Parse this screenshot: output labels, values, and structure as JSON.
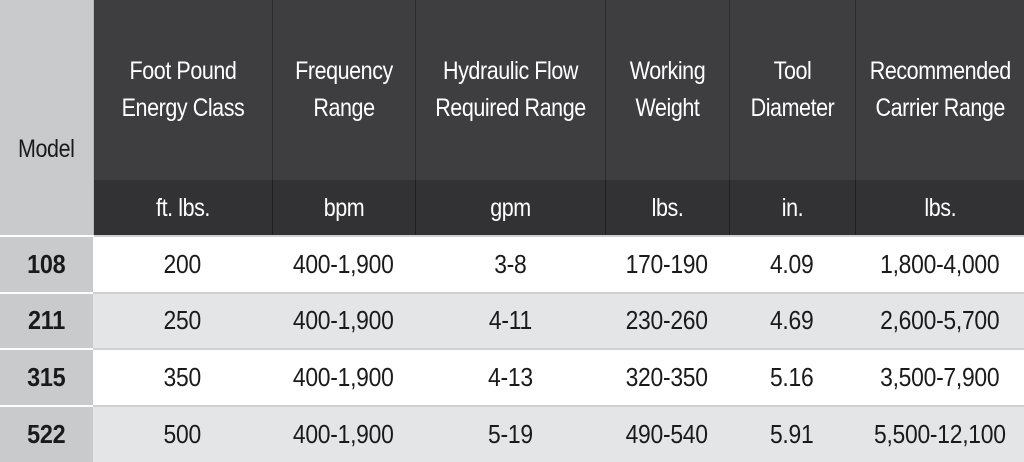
{
  "columns": [
    {
      "header": "Model",
      "unit": ""
    },
    {
      "header": "Foot Pound\nEnergy Class",
      "unit": "ft. lbs."
    },
    {
      "header": "Frequency\nRange",
      "unit": "bpm"
    },
    {
      "header": "Hydraulic Flow\nRequired Range",
      "unit": "gpm"
    },
    {
      "header": "Working\nWeight",
      "unit": "lbs."
    },
    {
      "header": "Tool\nDiameter",
      "unit": "in."
    },
    {
      "header": "Recommended\nCarrier Range",
      "unit": "lbs."
    }
  ],
  "rows": [
    {
      "model": "108",
      "energy": "200",
      "frequency": "400-1,900",
      "flow": "3-8",
      "weight": "170-190",
      "diameter": "4.09",
      "carrier": "1,800-4,000"
    },
    {
      "model": "211",
      "energy": "250",
      "frequency": "400-1,900",
      "flow": "4-11",
      "weight": "230-260",
      "diameter": "4.69",
      "carrier": "2,600-5,700"
    },
    {
      "model": "315",
      "energy": "350",
      "frequency": "400-1,900",
      "flow": "4-13",
      "weight": "320-350",
      "diameter": "5.16",
      "carrier": "3,500-7,900"
    },
    {
      "model": "522",
      "energy": "500",
      "frequency": "400-1,900",
      "flow": "5-19",
      "weight": "490-540",
      "diameter": "5.91",
      "carrier": "5,500-12,100"
    }
  ],
  "colors": {
    "header_bg": "#3e3e40",
    "unit_bg": "#323234",
    "model_bg": "#c9cacb",
    "row_alt_bg": "#e4e5e6"
  }
}
